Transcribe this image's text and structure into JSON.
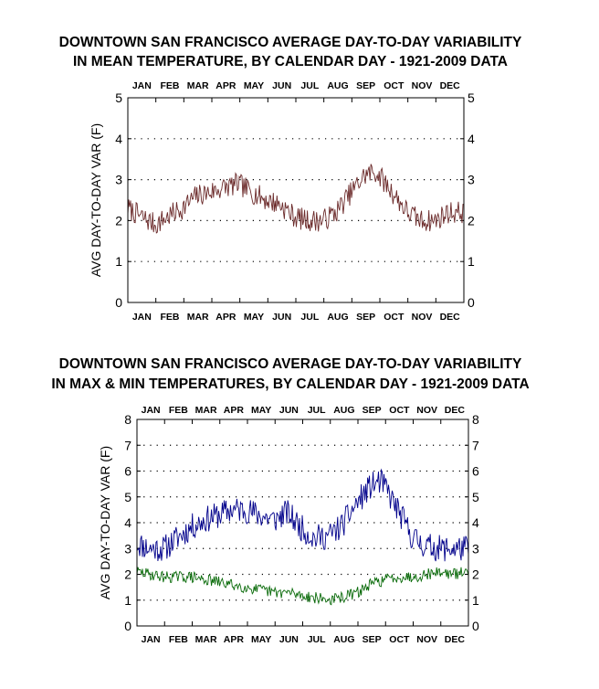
{
  "chart_data": [
    {
      "type": "line",
      "title": "DOWNTOWN SAN FRANCISCO AVERAGE DAY-TO-DAY VARIABILITY\nIN MEAN TEMPERATURE, BY CALENDAR DAY - 1921-2009 DATA",
      "title_lines": [
        "DOWNTOWN SAN FRANCISCO AVERAGE DAY-TO-DAY VARIABILITY",
        "IN MEAN TEMPERATURE, BY CALENDAR DAY - 1921-2009 DATA"
      ],
      "xlabel": "",
      "ylabel": "AVG DAY-TO-DAY VAR (F)",
      "x_tick_labels": [
        "JAN",
        "FEB",
        "MAR",
        "APR",
        "MAY",
        "JUN",
        "JUL",
        "AUG",
        "SEP",
        "OCT",
        "NOV",
        "DEC"
      ],
      "x_range": [
        1,
        366
      ],
      "ylim": [
        0,
        5
      ],
      "y_ticks": [
        0,
        1,
        2,
        3,
        4,
        5
      ],
      "grid": "horizontal dotted",
      "series_style": {
        "color": "#6b2a2a"
      },
      "series": [
        {
          "x": [
            1,
            15,
            31,
            45,
            60,
            75,
            91,
            105,
            121,
            135,
            152,
            166,
            182,
            196,
            213,
            227,
            244,
            258,
            268,
            274,
            288,
            305,
            319,
            335,
            349,
            366
          ],
          "y": [
            2.3,
            2.1,
            1.9,
            2.1,
            2.3,
            2.6,
            2.7,
            2.8,
            2.9,
            2.7,
            2.5,
            2.4,
            2.1,
            2.0,
            2.0,
            2.2,
            2.7,
            3.1,
            3.2,
            3.1,
            2.7,
            2.2,
            2.0,
            2.0,
            2.2,
            2.2
          ]
        }
      ]
    },
    {
      "type": "line",
      "title": "DOWNTOWN SAN FRANCISCO AVERAGE DAY-TO-DAY VARIABILITY\nIN MAX & MIN TEMPERATURES, BY CALENDAR DAY - 1921-2009 DATA",
      "title_lines": [
        "DOWNTOWN SAN FRANCISCO AVERAGE DAY-TO-DAY VARIABILITY",
        "IN MAX & MIN TEMPERATURES, BY CALENDAR DAY - 1921-2009 DATA"
      ],
      "xlabel": "",
      "ylabel": "AVG DAY-TO-DAY VAR (F)",
      "x_tick_labels": [
        "JAN",
        "FEB",
        "MAR",
        "APR",
        "MAY",
        "JUN",
        "JUL",
        "AUG",
        "SEP",
        "OCT",
        "NOV",
        "DEC"
      ],
      "x_range": [
        1,
        366
      ],
      "ylim": [
        0,
        8
      ],
      "y_ticks": [
        0,
        1,
        2,
        3,
        4,
        5,
        6,
        7,
        8
      ],
      "grid": "horizontal dotted",
      "series_style": [
        {
          "color": "#00008b"
        },
        {
          "color": "#0a6b0a"
        }
      ],
      "series": [
        {
          "x": [
            1,
            15,
            31,
            45,
            60,
            75,
            91,
            105,
            121,
            135,
            152,
            166,
            182,
            196,
            213,
            227,
            244,
            258,
            268,
            274,
            288,
            305,
            319,
            335,
            349,
            366
          ],
          "y": [
            3.2,
            3.0,
            3.0,
            3.4,
            3.8,
            4.1,
            4.3,
            4.5,
            4.5,
            4.3,
            4.1,
            4.4,
            3.8,
            3.4,
            3.5,
            3.9,
            4.8,
            5.4,
            5.6,
            5.4,
            4.5,
            3.4,
            3.1,
            3.0,
            3.0,
            3.0
          ]
        },
        {
          "x": [
            1,
            15,
            31,
            45,
            60,
            75,
            91,
            105,
            121,
            135,
            152,
            166,
            182,
            196,
            213,
            227,
            244,
            258,
            274,
            288,
            305,
            319,
            335,
            349,
            366
          ],
          "y": [
            2.1,
            2.0,
            1.9,
            1.9,
            1.9,
            1.8,
            1.7,
            1.6,
            1.5,
            1.4,
            1.3,
            1.3,
            1.2,
            1.1,
            1.0,
            1.1,
            1.3,
            1.6,
            1.8,
            1.9,
            1.9,
            2.0,
            2.1,
            2.0,
            2.1
          ]
        }
      ]
    }
  ]
}
